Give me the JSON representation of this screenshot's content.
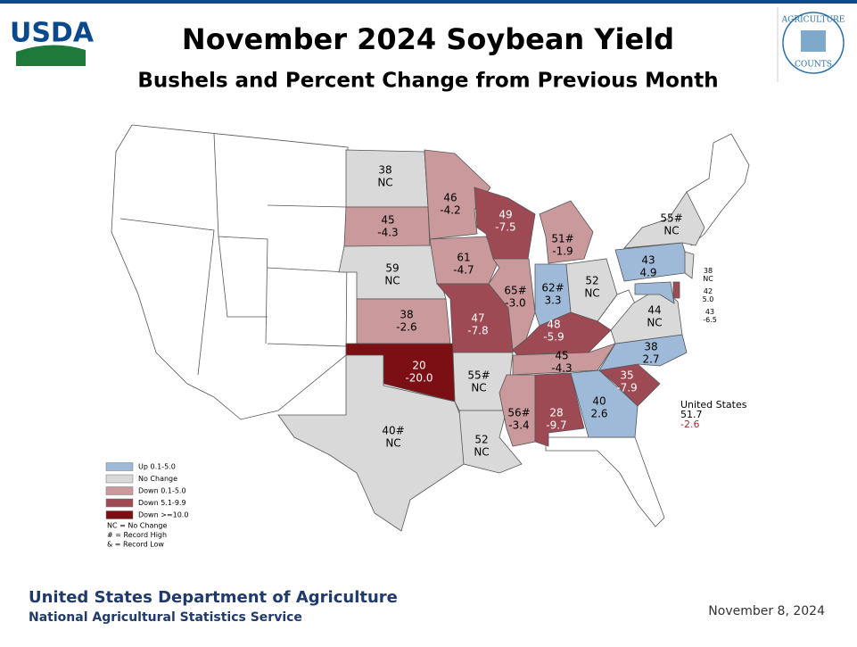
{
  "header": {
    "logo_text": "USDA",
    "title": "November 2024 Soybean Yield",
    "subtitle": "Bushels and Percent Change from Previous Month",
    "badge_top": "AGRICULTURE",
    "badge_bottom": "COUNTS"
  },
  "states": [
    {
      "yield": "38",
      "change": "NC",
      "color": "#d9d9d9"
    },
    {
      "yield": "45",
      "change": "-4.3",
      "color": "#c9999b"
    },
    {
      "yield": "59",
      "change": "NC",
      "color": "#d9d9d9"
    },
    {
      "yield": "38",
      "change": "-2.6",
      "color": "#c9999b"
    },
    {
      "yield": "20",
      "change": "-20.0",
      "color": "#7b0f14"
    },
    {
      "yield": "40#",
      "change": "NC",
      "color": "#d9d9d9"
    },
    {
      "yield": "46",
      "change": "-4.2",
      "color": "#c9999b"
    },
    {
      "yield": "61",
      "change": "-4.7",
      "color": "#c9999b"
    },
    {
      "yield": "47",
      "change": "-7.8",
      "color": "#9e4a55"
    },
    {
      "yield": "55#",
      "change": "NC",
      "color": "#d9d9d9"
    },
    {
      "yield": "52",
      "change": "NC",
      "color": "#d9d9d9"
    },
    {
      "yield": "49",
      "change": "-7.5",
      "color": "#9e4a55"
    },
    {
      "yield": "65#",
      "change": "-3.0",
      "color": "#c9999b"
    },
    {
      "yield": "51#",
      "change": "-1.9",
      "color": "#c9999b"
    },
    {
      "yield": "62#",
      "change": "3.3",
      "color": "#9fbad8"
    },
    {
      "yield": "52",
      "change": "NC",
      "color": "#d9d9d9"
    },
    {
      "yield": "48",
      "change": "-5.9",
      "color": "#9e4a55"
    },
    {
      "yield": "45",
      "change": "-4.3",
      "color": "#c9999b"
    },
    {
      "yield": "56#",
      "change": "-3.4",
      "color": "#c9999b"
    },
    {
      "yield": "28",
      "change": "-9.7",
      "color": "#9e4a55"
    },
    {
      "yield": "40",
      "change": "2.6",
      "color": "#9fbad8"
    },
    {
      "yield": "35",
      "change": "-7.9",
      "color": "#9e4a55"
    },
    {
      "yield": "38",
      "change": "2.7",
      "color": "#9fbad8"
    },
    {
      "yield": "44",
      "change": "NC",
      "color": "#d9d9d9"
    },
    {
      "yield": "43",
      "change": "4.9",
      "color": "#9fbad8"
    },
    {
      "yield": "55#",
      "change": "NC",
      "color": "#d9d9d9"
    },
    {
      "yield": "38",
      "change": "NC",
      "color": "#d9d9d9"
    },
    {
      "yield": "42",
      "change": "5.0",
      "color": "#9fbad8"
    },
    {
      "yield": "43",
      "change": "-6.5",
      "color": "#9e4a55"
    }
  ],
  "legend": [
    {
      "label": "Up 0.1-5.0",
      "color": "#9fbad8"
    },
    {
      "label": "No Change",
      "color": "#d9d9d9"
    },
    {
      "label": "Down 0.1-5.0",
      "color": "#c9999b"
    },
    {
      "label": "Down 5.1-9.9",
      "color": "#9e4a55"
    },
    {
      "label": "Down >=10.0",
      "color": "#7b0f14"
    }
  ],
  "notes": [
    "NC = No Change",
    "# = Record High",
    "& = Record Low"
  ],
  "us_total": {
    "label": "United States",
    "yield": "51.7",
    "change": "-2.6"
  },
  "footer": {
    "department": "United States Department of Agriculture",
    "service": "National Agricultural Statistics Service",
    "date": "November 8, 2024"
  }
}
